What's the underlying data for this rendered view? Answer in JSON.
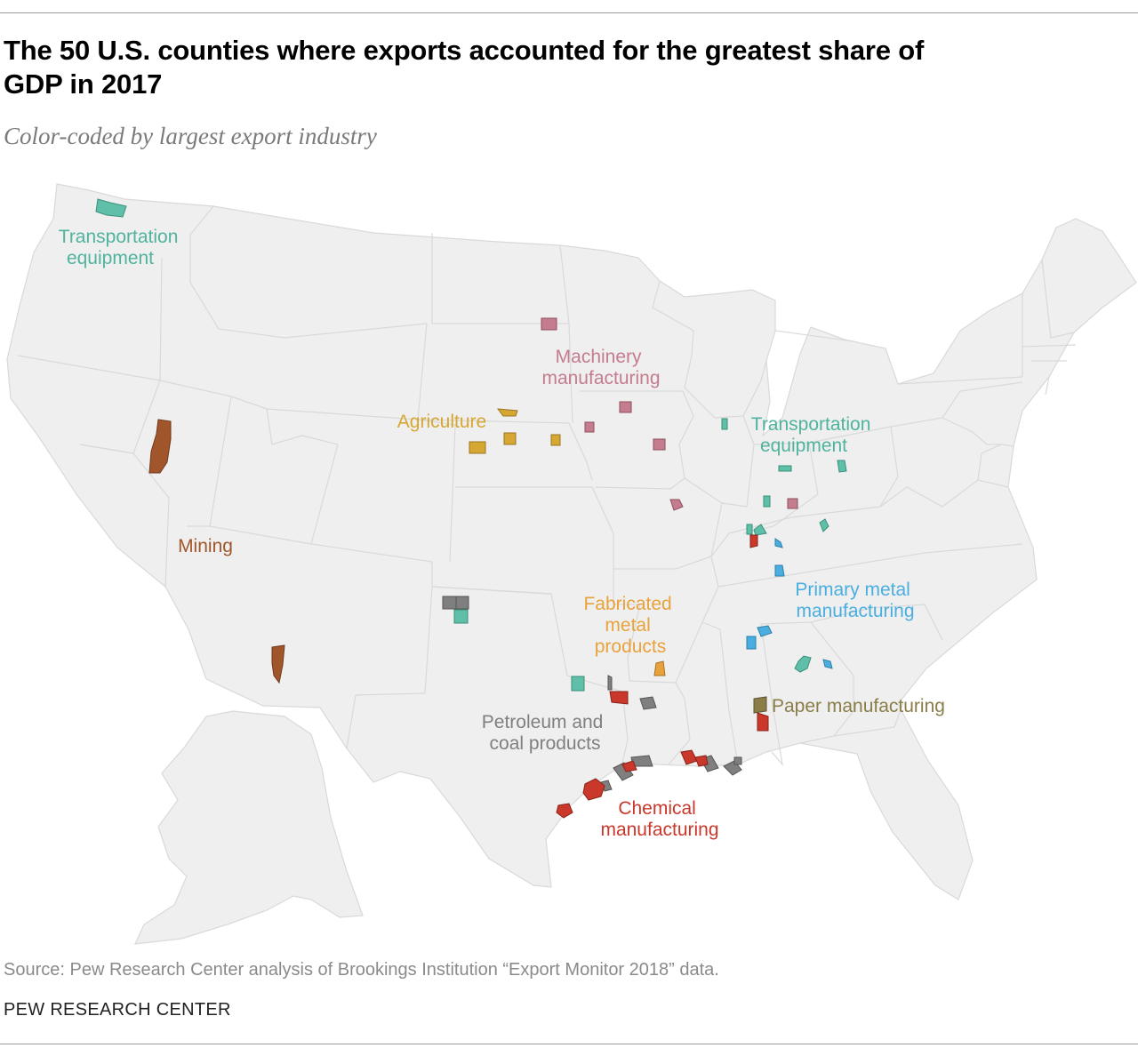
{
  "title": "The 50 U.S. counties where exports accounted for the greatest share of GDP in 2017",
  "subtitle": "Color-coded by largest export industry",
  "source": "Source: Pew Research Center analysis of Brookings Institution “Export Monitor 2018” data.",
  "brand": "PEW RESEARCH CENTER",
  "colors": {
    "land": "#efefef",
    "state_border": "#d9d9d9",
    "transportation": "#5fbfa8",
    "transportation_text": "#4fb39e",
    "machinery": "#c47c8e",
    "agriculture": "#d6a733",
    "mining": "#a0562a",
    "fabricated": "#e8a23c",
    "primary_metal": "#4aaee0",
    "paper": "#8a7d48",
    "petroleum": "#7f7f7f",
    "chemical": "#c9382a"
  },
  "industry_labels": {
    "transportation_west": [
      "Transportation",
      "equipment"
    ],
    "machinery": [
      "Machinery",
      "manufacturing"
    ],
    "agriculture": [
      "Agriculture"
    ],
    "transportation_east": [
      "Transportation",
      "equipment"
    ],
    "mining": [
      "Mining"
    ],
    "fabricated": [
      "Fabricated",
      "metal",
      "products"
    ],
    "primary_metal": [
      "Primary metal",
      "manufacturing"
    ],
    "paper": [
      "Paper manufacturing"
    ],
    "petroleum": [
      "Petroleum and",
      "coal products"
    ],
    "chemical": [
      "Chemical",
      "manufacturing"
    ]
  }
}
